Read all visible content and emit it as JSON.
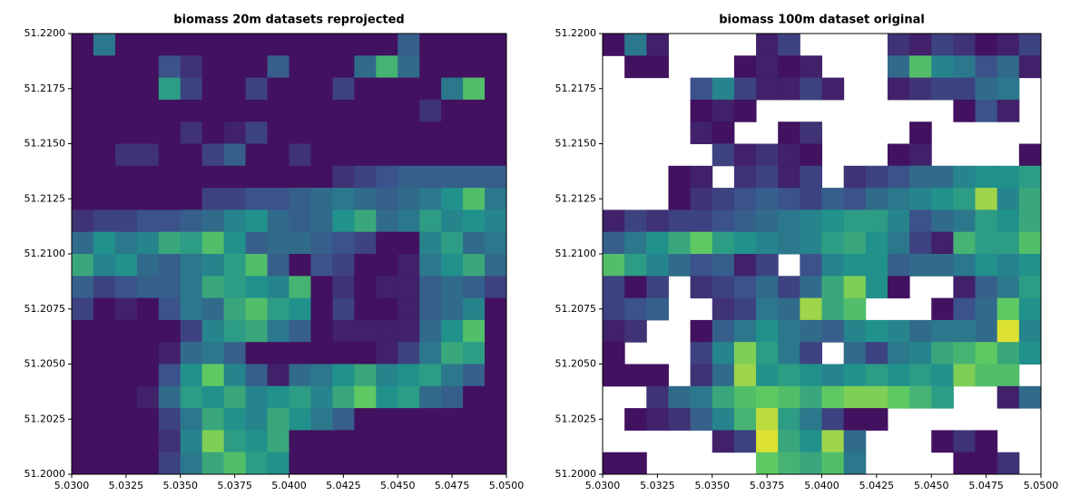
{
  "chart_data": [
    {
      "type": "heatmap",
      "title": "biomass 20m datasets reprojected",
      "colormap": "viridis",
      "xlim": [
        5.03,
        5.05
      ],
      "ylim": [
        51.2,
        51.22
      ],
      "xticks": [
        {
          "value": 5.03,
          "label": "5.0300"
        },
        {
          "value": 5.0325,
          "label": "5.0325"
        },
        {
          "value": 5.035,
          "label": "5.0350"
        },
        {
          "value": 5.0375,
          "label": "5.0375"
        },
        {
          "value": 5.04,
          "label": "5.0400"
        },
        {
          "value": 5.0425,
          "label": "5.0425"
        },
        {
          "value": 5.045,
          "label": "5.0450"
        },
        {
          "value": 5.0475,
          "label": "5.0475"
        },
        {
          "value": 5.05,
          "label": "5.0500"
        }
      ],
      "yticks": [
        {
          "value": 51.2,
          "label": "51.2000"
        },
        {
          "value": 51.2025,
          "label": "51.2025"
        },
        {
          "value": 51.205,
          "label": "51.2050"
        },
        {
          "value": 51.2075,
          "label": "51.2075"
        },
        {
          "value": 51.21,
          "label": "51.2100"
        },
        {
          "value": 51.2125,
          "label": "51.2125"
        },
        {
          "value": 51.215,
          "label": "51.2150"
        },
        {
          "value": 51.2175,
          "label": "51.2175"
        },
        {
          "value": 51.22,
          "label": "51.2200"
        }
      ],
      "values": [
        [
          0.05,
          0.4,
          0.05,
          0.05,
          0.05,
          0.05,
          0.05,
          0.05,
          0.05,
          0.05,
          0.05,
          0.05,
          0.05,
          0.05,
          0.05,
          0.3,
          0.05,
          0.05,
          0.05,
          0.05
        ],
        [
          0.05,
          0.05,
          0.05,
          0.05,
          0.25,
          0.15,
          0.05,
          0.05,
          0.05,
          0.3,
          0.05,
          0.05,
          0.05,
          0.35,
          0.65,
          0.35,
          0.05,
          0.05,
          0.05,
          0.05
        ],
        [
          0.05,
          0.05,
          0.05,
          0.05,
          0.55,
          0.2,
          0.05,
          0.05,
          0.2,
          0.05,
          0.05,
          0.05,
          0.2,
          0.05,
          0.05,
          0.05,
          0.05,
          0.4,
          0.7,
          0.05
        ],
        [
          0.05,
          0.05,
          0.05,
          0.05,
          0.05,
          0.05,
          0.05,
          0.05,
          0.05,
          0.05,
          0.05,
          0.05,
          0.05,
          0.05,
          0.05,
          0.05,
          0.15,
          0.05,
          0.05,
          0.05
        ],
        [
          0.05,
          0.05,
          0.05,
          0.05,
          0.05,
          0.15,
          0.05,
          0.1,
          0.2,
          0.05,
          0.05,
          0.05,
          0.05,
          0.05,
          0.05,
          0.05,
          0.05,
          0.05,
          0.05,
          0.05
        ],
        [
          0.05,
          0.05,
          0.15,
          0.15,
          0.05,
          0.05,
          0.2,
          0.3,
          0.05,
          0.05,
          0.15,
          0.05,
          0.05,
          0.05,
          0.05,
          0.05,
          0.05,
          0.05,
          0.05,
          0.05
        ],
        [
          0.05,
          0.05,
          0.05,
          0.05,
          0.05,
          0.05,
          0.05,
          0.05,
          0.05,
          0.05,
          0.05,
          0.05,
          0.15,
          0.2,
          0.25,
          0.3,
          0.3,
          0.3,
          0.3,
          0.3
        ],
        [
          0.05,
          0.05,
          0.05,
          0.05,
          0.05,
          0.05,
          0.2,
          0.2,
          0.25,
          0.25,
          0.3,
          0.35,
          0.4,
          0.35,
          0.3,
          0.35,
          0.4,
          0.5,
          0.7,
          0.4
        ],
        [
          0.15,
          0.2,
          0.2,
          0.25,
          0.25,
          0.3,
          0.35,
          0.45,
          0.5,
          0.35,
          0.3,
          0.35,
          0.5,
          0.6,
          0.35,
          0.4,
          0.55,
          0.45,
          0.5,
          0.45
        ],
        [
          0.35,
          0.5,
          0.4,
          0.45,
          0.6,
          0.55,
          0.7,
          0.5,
          0.3,
          0.35,
          0.35,
          0.3,
          0.25,
          0.2,
          0.05,
          0.05,
          0.45,
          0.55,
          0.35,
          0.4
        ],
        [
          0.6,
          0.45,
          0.5,
          0.35,
          0.3,
          0.4,
          0.45,
          0.55,
          0.7,
          0.3,
          0.05,
          0.25,
          0.2,
          0.05,
          0.05,
          0.1,
          0.4,
          0.5,
          0.6,
          0.35
        ],
        [
          0.3,
          0.2,
          0.25,
          0.3,
          0.3,
          0.4,
          0.6,
          0.55,
          0.5,
          0.45,
          0.65,
          0.05,
          0.15,
          0.05,
          0.1,
          0.1,
          0.3,
          0.35,
          0.3,
          0.2
        ],
        [
          0.2,
          0.05,
          0.1,
          0.05,
          0.25,
          0.4,
          0.35,
          0.6,
          0.7,
          0.55,
          0.5,
          0.05,
          0.2,
          0.05,
          0.05,
          0.1,
          0.3,
          0.35,
          0.45,
          0.05
        ],
        [
          0.05,
          0.05,
          0.05,
          0.05,
          0.05,
          0.2,
          0.45,
          0.55,
          0.6,
          0.4,
          0.3,
          0.05,
          0.1,
          0.1,
          0.1,
          0.1,
          0.35,
          0.5,
          0.7,
          0.05
        ],
        [
          0.05,
          0.05,
          0.05,
          0.05,
          0.1,
          0.35,
          0.4,
          0.3,
          0.05,
          0.05,
          0.05,
          0.05,
          0.05,
          0.05,
          0.1,
          0.2,
          0.4,
          0.6,
          0.55,
          0.05
        ],
        [
          0.05,
          0.05,
          0.05,
          0.05,
          0.25,
          0.5,
          0.75,
          0.45,
          0.3,
          0.1,
          0.35,
          0.4,
          0.5,
          0.6,
          0.45,
          0.5,
          0.55,
          0.4,
          0.3,
          0.05
        ],
        [
          0.05,
          0.05,
          0.05,
          0.1,
          0.35,
          0.55,
          0.5,
          0.6,
          0.45,
          0.5,
          0.55,
          0.45,
          0.6,
          0.75,
          0.5,
          0.55,
          0.35,
          0.3,
          0.05,
          0.05
        ],
        [
          0.05,
          0.05,
          0.05,
          0.05,
          0.2,
          0.4,
          0.6,
          0.5,
          0.45,
          0.6,
          0.5,
          0.4,
          0.3,
          0.05,
          0.05,
          0.05,
          0.05,
          0.05,
          0.05,
          0.05
        ],
        [
          0.05,
          0.05,
          0.05,
          0.05,
          0.15,
          0.45,
          0.8,
          0.55,
          0.5,
          0.6,
          0.05,
          0.05,
          0.05,
          0.05,
          0.05,
          0.05,
          0.05,
          0.05,
          0.05,
          0.05
        ],
        [
          0.05,
          0.05,
          0.05,
          0.05,
          0.2,
          0.4,
          0.6,
          0.7,
          0.55,
          0.5,
          0.05,
          0.05,
          0.05,
          0.05,
          0.05,
          0.05,
          0.05,
          0.05,
          0.05,
          0.05
        ]
      ]
    },
    {
      "type": "heatmap",
      "title": "biomass 100m dataset original",
      "colormap": "viridis",
      "xlim": [
        5.03,
        5.05
      ],
      "ylim": [
        51.2,
        51.22
      ],
      "xticks": [
        {
          "value": 5.03,
          "label": "5.0300"
        },
        {
          "value": 5.0325,
          "label": "5.0325"
        },
        {
          "value": 5.035,
          "label": "5.0350"
        },
        {
          "value": 5.0375,
          "label": "5.0375"
        },
        {
          "value": 5.04,
          "label": "5.0400"
        },
        {
          "value": 5.0425,
          "label": "5.0425"
        },
        {
          "value": 5.045,
          "label": "5.0450"
        },
        {
          "value": 5.0475,
          "label": "5.0475"
        },
        {
          "value": 5.05,
          "label": "5.0500"
        }
      ],
      "yticks": [
        {
          "value": 51.2,
          "label": "51.2000"
        },
        {
          "value": 51.2025,
          "label": "51.2025"
        },
        {
          "value": 51.205,
          "label": "51.2050"
        },
        {
          "value": 51.2075,
          "label": "51.2075"
        },
        {
          "value": 51.21,
          "label": "51.2100"
        },
        {
          "value": 51.2125,
          "label": "51.2125"
        },
        {
          "value": 51.215,
          "label": "51.2150"
        },
        {
          "value": 51.2175,
          "label": "51.2175"
        },
        {
          "value": 51.22,
          "label": "51.2200"
        }
      ],
      "values": [
        [
          0.05,
          0.4,
          0.1,
          null,
          null,
          null,
          null,
          0.1,
          0.2,
          null,
          null,
          null,
          null,
          0.15,
          0.1,
          0.2,
          0.15,
          0.05,
          0.1,
          0.2
        ],
        [
          null,
          0.05,
          0.05,
          null,
          null,
          null,
          0.05,
          0.1,
          0.05,
          0.1,
          null,
          null,
          null,
          0.35,
          0.7,
          0.45,
          0.4,
          0.25,
          0.35,
          0.1
        ],
        [
          null,
          null,
          null,
          null,
          0.25,
          0.45,
          0.2,
          0.1,
          0.1,
          0.2,
          0.1,
          null,
          null,
          0.1,
          0.15,
          0.2,
          0.2,
          0.35,
          0.4,
          null
        ],
        [
          null,
          null,
          null,
          null,
          0.05,
          0.1,
          0.05,
          null,
          null,
          null,
          null,
          null,
          null,
          null,
          null,
          null,
          0.05,
          0.25,
          0.1,
          null
        ],
        [
          null,
          null,
          null,
          null,
          0.1,
          0.05,
          null,
          null,
          0.05,
          0.15,
          null,
          null,
          null,
          null,
          0.05,
          null,
          null,
          null,
          null,
          null
        ],
        [
          null,
          null,
          null,
          null,
          null,
          0.2,
          0.1,
          0.15,
          0.1,
          0.05,
          null,
          null,
          null,
          0.05,
          0.1,
          null,
          null,
          null,
          null,
          0.05
        ],
        [
          null,
          null,
          null,
          0.05,
          0.1,
          null,
          0.15,
          0.2,
          0.1,
          0.2,
          null,
          0.15,
          0.2,
          0.25,
          0.35,
          0.35,
          0.45,
          0.5,
          0.5,
          0.55
        ],
        [
          null,
          null,
          null,
          0.05,
          0.15,
          0.2,
          0.25,
          0.3,
          0.25,
          0.2,
          0.3,
          0.25,
          0.35,
          0.4,
          0.45,
          0.5,
          0.55,
          0.85,
          0.45,
          0.6
        ],
        [
          0.1,
          0.2,
          0.15,
          0.2,
          0.2,
          0.25,
          0.3,
          0.35,
          0.4,
          0.45,
          0.5,
          0.55,
          0.55,
          0.45,
          0.25,
          0.35,
          0.4,
          0.55,
          0.5,
          0.6
        ],
        [
          0.3,
          0.4,
          0.5,
          0.6,
          0.75,
          0.55,
          0.5,
          0.45,
          0.4,
          0.45,
          0.55,
          0.6,
          0.5,
          0.4,
          0.2,
          0.1,
          0.65,
          0.55,
          0.55,
          0.7
        ],
        [
          0.7,
          0.55,
          0.45,
          0.35,
          0.25,
          0.3,
          0.1,
          0.2,
          null,
          0.25,
          0.45,
          0.5,
          0.5,
          0.3,
          0.35,
          0.35,
          0.4,
          0.5,
          0.45,
          0.5
        ],
        [
          0.2,
          0.05,
          0.2,
          null,
          0.15,
          0.2,
          0.25,
          0.35,
          0.2,
          0.35,
          0.6,
          0.8,
          0.5,
          0.05,
          null,
          null,
          0.1,
          0.3,
          0.4,
          0.55
        ],
        [
          0.2,
          0.25,
          0.3,
          null,
          null,
          0.15,
          0.2,
          0.4,
          0.35,
          0.85,
          0.6,
          0.7,
          null,
          null,
          null,
          0.05,
          0.25,
          0.35,
          0.75,
          0.5
        ],
        [
          0.1,
          0.15,
          null,
          null,
          0.05,
          0.3,
          0.4,
          0.5,
          0.4,
          0.35,
          0.3,
          0.45,
          0.5,
          0.45,
          0.35,
          0.4,
          0.4,
          0.35,
          0.95,
          0.45
        ],
        [
          0.05,
          null,
          null,
          null,
          0.2,
          0.45,
          0.8,
          0.55,
          0.4,
          0.2,
          null,
          0.35,
          0.2,
          0.4,
          0.45,
          0.6,
          0.65,
          0.75,
          0.6,
          0.5
        ],
        [
          0.05,
          0.05,
          0.05,
          null,
          0.15,
          0.35,
          0.85,
          0.5,
          0.55,
          0.5,
          0.45,
          0.5,
          0.55,
          0.5,
          0.55,
          0.5,
          0.8,
          0.7,
          0.7,
          null
        ],
        [
          null,
          null,
          0.15,
          0.35,
          0.4,
          0.6,
          0.7,
          0.75,
          0.7,
          0.6,
          0.75,
          0.8,
          0.8,
          0.75,
          0.65,
          0.55,
          null,
          null,
          0.1,
          0.35
        ],
        [
          null,
          0.05,
          0.1,
          0.15,
          0.3,
          0.45,
          0.65,
          0.9,
          0.55,
          0.4,
          0.2,
          0.05,
          0.05,
          null,
          null,
          null,
          null,
          null,
          null,
          null
        ],
        [
          null,
          null,
          null,
          null,
          null,
          0.1,
          0.2,
          0.95,
          0.6,
          0.5,
          0.85,
          0.35,
          null,
          null,
          null,
          0.05,
          0.15,
          0.05,
          null,
          null
        ],
        [
          0.05,
          0.05,
          null,
          null,
          null,
          null,
          null,
          0.75,
          0.65,
          0.6,
          0.7,
          0.4,
          null,
          null,
          null,
          null,
          0.05,
          0.05,
          0.15,
          null
        ]
      ]
    }
  ]
}
